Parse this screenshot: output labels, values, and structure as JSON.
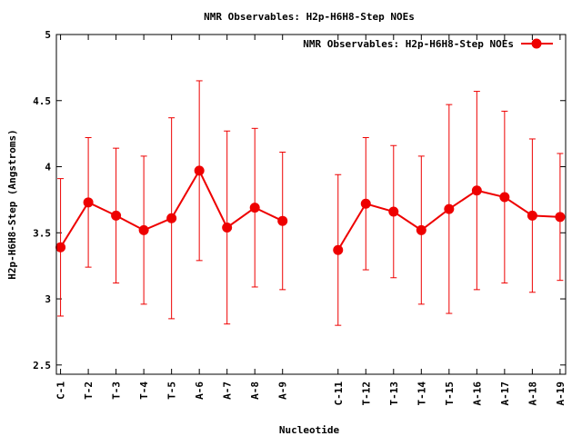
{
  "chart_data": {
    "type": "line",
    "title": "NMR Observables: H2p-H6H8-Step NOEs",
    "xlabel": "Nucleotide",
    "ylabel": "H2p-H6H8-Step (Angstroms)",
    "ylim": [
      2.43,
      5.0
    ],
    "yticks": [
      2.5,
      3,
      3.5,
      4,
      4.5,
      5
    ],
    "ytick_labels": [
      "2.5",
      "3",
      "3.5",
      "4",
      "4.5",
      "5"
    ],
    "grid": false,
    "legend_position": "top-right",
    "series": [
      {
        "name": "NMR Observables: H2p-H6H8-Step NOEs",
        "color": "#ee0000",
        "points": [
          {
            "x": 1,
            "label": "C-1",
            "y": 3.39,
            "err": 0.52
          },
          {
            "x": 2,
            "label": "T-2",
            "y": 3.73,
            "err": 0.49
          },
          {
            "x": 3,
            "label": "T-3",
            "y": 3.63,
            "err": 0.51
          },
          {
            "x": 4,
            "label": "T-4",
            "y": 3.52,
            "err": 0.56
          },
          {
            "x": 5,
            "label": "T-5",
            "y": 3.61,
            "err": 0.76
          },
          {
            "x": 6,
            "label": "A-6",
            "y": 3.97,
            "err": 0.68
          },
          {
            "x": 7,
            "label": "A-7",
            "y": 3.54,
            "err": 0.73
          },
          {
            "x": 8,
            "label": "A-8",
            "y": 3.69,
            "err": 0.6
          },
          {
            "x": 9,
            "label": "A-9",
            "y": 3.59,
            "err": 0.52
          },
          {
            "x": 11,
            "label": "C-11",
            "y": 3.37,
            "err": 0.57
          },
          {
            "x": 12,
            "label": "T-12",
            "y": 3.72,
            "err": 0.5
          },
          {
            "x": 13,
            "label": "T-13",
            "y": 3.66,
            "err": 0.5
          },
          {
            "x": 14,
            "label": "T-14",
            "y": 3.52,
            "err": 0.56
          },
          {
            "x": 15,
            "label": "T-15",
            "y": 3.68,
            "err": 0.79
          },
          {
            "x": 16,
            "label": "A-16",
            "y": 3.82,
            "err": 0.75
          },
          {
            "x": 17,
            "label": "A-17",
            "y": 3.77,
            "err": 0.65
          },
          {
            "x": 18,
            "label": "A-18",
            "y": 3.63,
            "err": 0.58
          },
          {
            "x": 19,
            "label": "A-19",
            "y": 3.62,
            "err": 0.48
          }
        ]
      }
    ],
    "xlim": [
      0.85,
      19.2
    ]
  }
}
